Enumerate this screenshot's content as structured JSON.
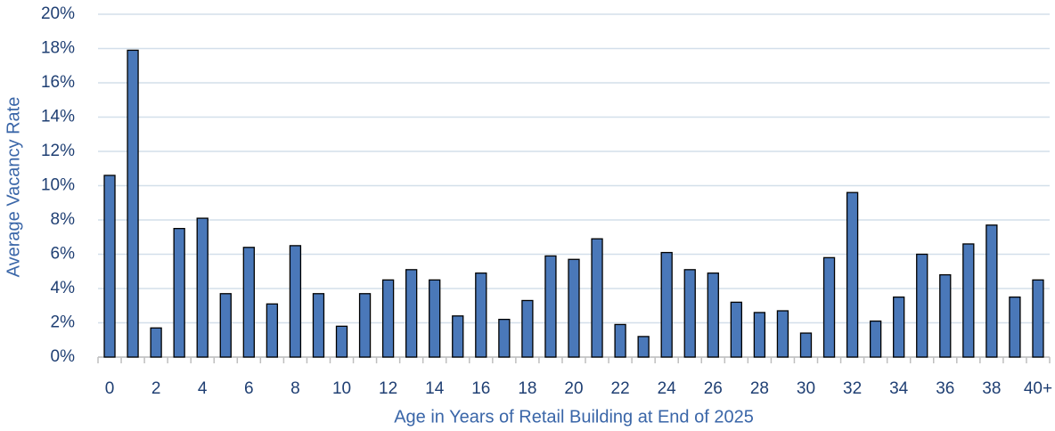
{
  "chart_data": {
    "type": "bar",
    "x_label": "Age in Years of Retail Building at End of 2025",
    "y_label": "Average Vacancy Rate",
    "categories": [
      "0",
      null,
      "2",
      null,
      "4",
      null,
      "6",
      null,
      "8",
      null,
      "10",
      null,
      "12",
      null,
      "14",
      null,
      "16",
      null,
      "18",
      null,
      "20",
      null,
      "22",
      null,
      "24",
      null,
      "26",
      null,
      "28",
      null,
      "30",
      null,
      "32",
      null,
      "34",
      null,
      "36",
      null,
      "38",
      null,
      "40+"
    ],
    "values": [
      10.6,
      17.9,
      1.7,
      7.5,
      8.1,
      3.7,
      6.4,
      3.1,
      6.5,
      3.7,
      1.8,
      3.7,
      4.5,
      5.1,
      4.5,
      2.4,
      4.9,
      2.2,
      3.3,
      5.9,
      5.7,
      6.9,
      1.9,
      1.2,
      6.1,
      5.1,
      4.9,
      3.2,
      2.6,
      2.7,
      1.4,
      5.8,
      9.6,
      2.1,
      3.5,
      6.0,
      4.8,
      6.6,
      7.7,
      3.5,
      4.5
    ],
    "color": "#4a78b9",
    "ylim": [
      0,
      20
    ],
    "yticks": [
      {
        "value": 0,
        "label": "0%"
      },
      {
        "value": 2,
        "label": "2%"
      },
      {
        "value": 4,
        "label": "4%"
      },
      {
        "value": 6,
        "label": "6%"
      },
      {
        "value": 8,
        "label": "8%"
      },
      {
        "value": 10,
        "label": "10%"
      },
      {
        "value": 12,
        "label": "12%"
      },
      {
        "value": 14,
        "label": "14%"
      },
      {
        "value": 16,
        "label": "16%"
      },
      {
        "value": 18,
        "label": "18%"
      },
      {
        "value": 20,
        "label": "20%"
      }
    ],
    "grid": true
  }
}
